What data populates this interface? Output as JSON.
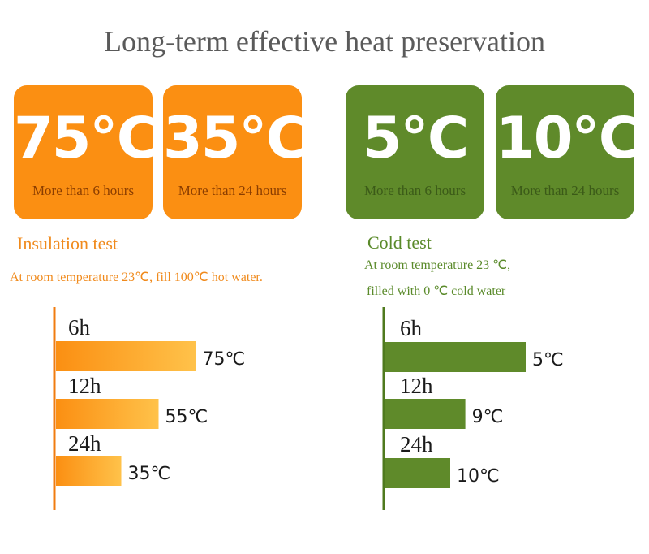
{
  "title": "Long-term effective heat preservation",
  "cards": [
    {
      "value": "75℃",
      "caption": "More than 6 hours",
      "theme": "orange"
    },
    {
      "value": "35℃",
      "caption": "More than 24 hours",
      "theme": "orange"
    },
    {
      "value": "5℃",
      "caption": "More than 6 hours",
      "theme": "green"
    },
    {
      "value": "10℃",
      "caption": "More than 24 hours",
      "theme": "green"
    }
  ],
  "colors": {
    "orange": "#fb8f12",
    "orange_light": "#ffc24a",
    "orange_text": "#f08a1c",
    "green": "#5f8a2a",
    "green_text": "#5a8a2a",
    "axis_orange": "#f07c10",
    "axis_green": "#4f7a1e"
  },
  "insulation": {
    "title": "Insulation test",
    "note": "At room temperature 23℃, fill 100℃ hot water."
  },
  "cold": {
    "title": "Cold test",
    "note_line1": "At room temperature 23 ℃,",
    "note_line2": "filled with 0 ℃ cold water"
  },
  "chart_data": [
    {
      "type": "bar",
      "orientation": "horizontal",
      "categories": [
        "6h",
        "12h",
        "24h"
      ],
      "values": [
        75,
        55,
        35
      ],
      "labels": [
        "75℃",
        "55℃",
        "35℃"
      ],
      "unit": "℃",
      "color": "#fb8f12",
      "xlim": [
        0,
        80
      ]
    },
    {
      "type": "bar",
      "orientation": "horizontal",
      "categories": [
        "6h",
        "12h",
        "24h"
      ],
      "values": [
        5,
        9,
        10
      ],
      "labels": [
        "5℃",
        "9℃",
        "10℃"
      ],
      "unit": "℃",
      "color": "#5f8a2a"
    }
  ]
}
